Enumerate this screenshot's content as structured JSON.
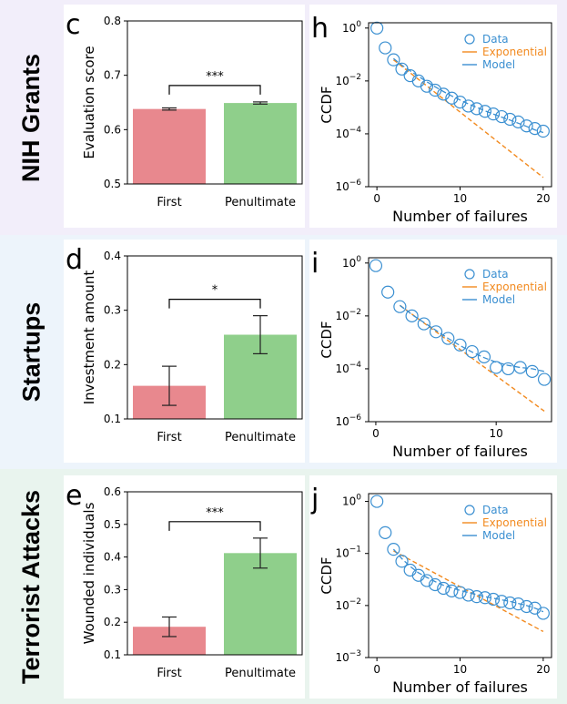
{
  "rows": [
    {
      "title": "NIH Grants"
    },
    {
      "title": "Startups"
    },
    {
      "title": "Terrorist Attacks"
    }
  ],
  "colors": {
    "first_bar": "#e8888e",
    "penultimate_bar": "#8fcf8b",
    "data_marker": "#3a8fd1",
    "exponential": "#f28a1f",
    "model": "#3a8fd1"
  },
  "chart_data": [
    {
      "panel": "c",
      "type": "bar",
      "categories": [
        "First",
        "Penultimate"
      ],
      "values": [
        0.638,
        0.649
      ],
      "errors": [
        0.002,
        0.002
      ],
      "ylabel": "Evaluation score",
      "ylim": [
        0.5,
        0.8
      ],
      "yticks": [
        0.5,
        0.6,
        0.7,
        0.8
      ],
      "ytick_labels": [
        "0.5",
        "0.6",
        "0.7",
        "0.8"
      ],
      "significance": "***"
    },
    {
      "panel": "h",
      "type": "scatter",
      "xlabel": "Number of failures",
      "ylabel": "CCDF",
      "log_y": true,
      "xlim": [
        -1,
        21
      ],
      "ylim_exp": [
        -6,
        0.2
      ],
      "xticks": [
        0,
        10,
        20
      ],
      "yticks_exp": [
        0,
        -2,
        -4,
        -6
      ],
      "legend": [
        "Data",
        "Exponential",
        "Model"
      ],
      "legend_position": "top-right",
      "x": [
        0,
        1,
        2,
        3,
        4,
        5,
        6,
        7,
        8,
        9,
        10,
        11,
        12,
        13,
        14,
        15,
        16,
        17,
        18,
        19,
        20
      ],
      "data_log10": [
        0,
        -0.75,
        -1.2,
        -1.55,
        -1.8,
        -2.0,
        -2.2,
        -2.35,
        -2.5,
        -2.65,
        -2.8,
        -2.95,
        -3.05,
        -3.15,
        -3.25,
        -3.35,
        -3.45,
        -3.55,
        -3.7,
        -3.8,
        -3.9
      ],
      "exponential_x": [
        2,
        20
      ],
      "exponential_log10": [
        -1.2,
        -5.65
      ],
      "model_log10": [
        -1.15,
        -1.4,
        -1.62,
        -1.83,
        -2.03,
        -2.22,
        -2.4,
        -2.57,
        -2.72,
        -2.87,
        -3.0,
        -3.13,
        -3.25,
        -3.37,
        -3.48,
        -3.6,
        -3.72,
        -3.85,
        -3.95
      ]
    },
    {
      "panel": "d",
      "type": "bar",
      "categories": [
        "First",
        "Penultimate"
      ],
      "values": [
        0.161,
        0.255
      ],
      "errors": [
        0.036,
        0.035
      ],
      "ylabel": "Investment amount",
      "ylim": [
        0.1,
        0.4
      ],
      "yticks": [
        0.1,
        0.2,
        0.3,
        0.4
      ],
      "ytick_labels": [
        "0.1",
        "0.2",
        "0.3",
        "0.4"
      ],
      "significance": "*"
    },
    {
      "panel": "i",
      "type": "scatter",
      "xlabel": "Number of failures",
      "ylabel": "CCDF",
      "log_y": true,
      "xlim": [
        -0.6,
        14.6
      ],
      "ylim_exp": [
        -6,
        0.2
      ],
      "xticks": [
        0,
        10
      ],
      "yticks_exp": [
        0,
        -2,
        -4,
        -6
      ],
      "legend": [
        "Data",
        "Exponential",
        "Model"
      ],
      "legend_position": "top-right",
      "x": [
        0,
        1,
        2,
        3,
        4,
        5,
        6,
        7,
        8,
        9,
        10,
        11,
        12,
        13,
        14
      ],
      "data_log10": [
        -0.1,
        -1.1,
        -1.65,
        -2.0,
        -2.3,
        -2.6,
        -2.85,
        -3.1,
        -3.35,
        -3.55,
        -3.95,
        -4.0,
        -3.95,
        -4.1,
        -4.4
      ],
      "exponential_x": [
        2,
        14
      ],
      "exponential_log10": [
        -1.6,
        -5.6
      ],
      "model_log10": [
        -1.6,
        -1.95,
        -2.25,
        -2.55,
        -2.85,
        -3.12,
        -3.37,
        -3.58,
        -3.75,
        -3.87,
        -3.95,
        -4.0,
        -4.1
      ]
    },
    {
      "panel": "e",
      "type": "bar",
      "categories": [
        "First",
        "Penultimate"
      ],
      "values": [
        0.186,
        0.412
      ],
      "errors": [
        0.03,
        0.046
      ],
      "ylabel": "Wounded individuals",
      "ylim": [
        0.1,
        0.6
      ],
      "yticks": [
        0.1,
        0.2,
        0.3,
        0.4,
        0.5,
        0.6
      ],
      "ytick_labels": [
        "0.1",
        "0.2",
        "0.3",
        "0.4",
        "0.5",
        "0.6"
      ],
      "significance": "***"
    },
    {
      "panel": "j",
      "type": "scatter",
      "xlabel": "Number of failures",
      "ylabel": "CCDF",
      "log_y": true,
      "xlim": [
        -1,
        21
      ],
      "ylim_exp": [
        -3,
        0.15
      ],
      "xticks": [
        0,
        10,
        20
      ],
      "yticks_exp": [
        0,
        -1,
        -2,
        -3
      ],
      "legend": [
        "Data",
        "Exponential",
        "Model"
      ],
      "legend_position": "top-right",
      "x": [
        0,
        1,
        2,
        3,
        4,
        5,
        6,
        7,
        8,
        9,
        10,
        11,
        12,
        13,
        14,
        15,
        16,
        17,
        18,
        19,
        20
      ],
      "data_log10": [
        0,
        -0.6,
        -0.92,
        -1.15,
        -1.32,
        -1.42,
        -1.52,
        -1.6,
        -1.67,
        -1.72,
        -1.75,
        -1.8,
        -1.83,
        -1.85,
        -1.88,
        -1.92,
        -1.95,
        -1.97,
        -2.02,
        -2.05,
        -2.15
      ],
      "exponential_x": [
        2,
        20
      ],
      "exponential_log10": [
        -0.95,
        -2.5
      ],
      "model_log10": [
        -0.92,
        -1.1,
        -1.25,
        -1.37,
        -1.46,
        -1.54,
        -1.61,
        -1.66,
        -1.71,
        -1.75,
        -1.79,
        -1.83,
        -1.86,
        -1.89,
        -1.92,
        -1.96,
        -2.0,
        -2.05,
        -2.12
      ]
    }
  ]
}
